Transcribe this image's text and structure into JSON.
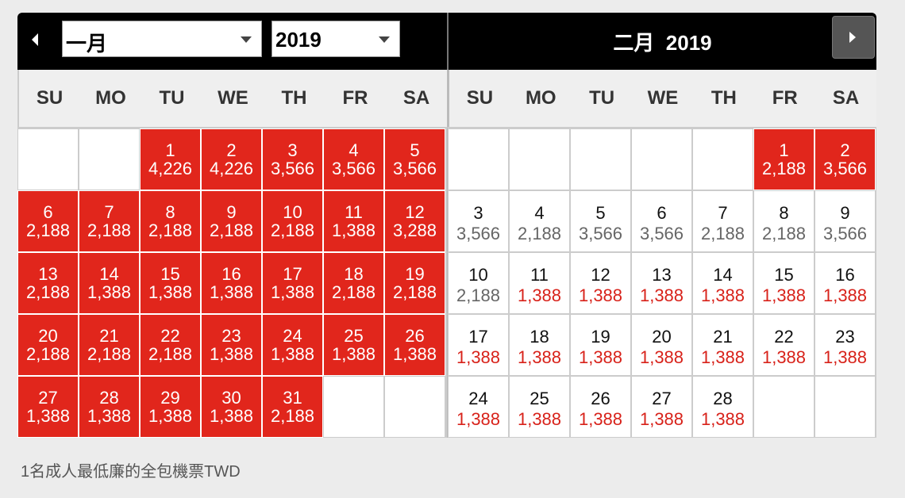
{
  "jan": {
    "month_value": "一月",
    "year_value": "2019",
    "weekdays": [
      "SU",
      "MO",
      "TU",
      "WE",
      "TH",
      "FR",
      "SA"
    ],
    "cells": [
      {
        "d": "",
        "p": "",
        "t": "empty"
      },
      {
        "d": "",
        "p": "",
        "t": "empty"
      },
      {
        "d": "1",
        "p": "4,226",
        "t": "red"
      },
      {
        "d": "2",
        "p": "4,226",
        "t": "red"
      },
      {
        "d": "3",
        "p": "3,566",
        "t": "red"
      },
      {
        "d": "4",
        "p": "3,566",
        "t": "red"
      },
      {
        "d": "5",
        "p": "3,566",
        "t": "red"
      },
      {
        "d": "6",
        "p": "2,188",
        "t": "red"
      },
      {
        "d": "7",
        "p": "2,188",
        "t": "red"
      },
      {
        "d": "8",
        "p": "2,188",
        "t": "red"
      },
      {
        "d": "9",
        "p": "2,188",
        "t": "red"
      },
      {
        "d": "10",
        "p": "2,188",
        "t": "red"
      },
      {
        "d": "11",
        "p": "1,388",
        "t": "red"
      },
      {
        "d": "12",
        "p": "3,288",
        "t": "red"
      },
      {
        "d": "13",
        "p": "2,188",
        "t": "red"
      },
      {
        "d": "14",
        "p": "1,388",
        "t": "red"
      },
      {
        "d": "15",
        "p": "1,388",
        "t": "red"
      },
      {
        "d": "16",
        "p": "1,388",
        "t": "red"
      },
      {
        "d": "17",
        "p": "1,388",
        "t": "red"
      },
      {
        "d": "18",
        "p": "2,188",
        "t": "red"
      },
      {
        "d": "19",
        "p": "2,188",
        "t": "red"
      },
      {
        "d": "20",
        "p": "2,188",
        "t": "red"
      },
      {
        "d": "21",
        "p": "2,188",
        "t": "red"
      },
      {
        "d": "22",
        "p": "2,188",
        "t": "red"
      },
      {
        "d": "23",
        "p": "1,388",
        "t": "red"
      },
      {
        "d": "24",
        "p": "1,388",
        "t": "red"
      },
      {
        "d": "25",
        "p": "1,388",
        "t": "red"
      },
      {
        "d": "26",
        "p": "1,388",
        "t": "red"
      },
      {
        "d": "27",
        "p": "1,388",
        "t": "red"
      },
      {
        "d": "28",
        "p": "1,388",
        "t": "red"
      },
      {
        "d": "29",
        "p": "1,388",
        "t": "red"
      },
      {
        "d": "30",
        "p": "1,388",
        "t": "red"
      },
      {
        "d": "31",
        "p": "2,188",
        "t": "red"
      },
      {
        "d": "",
        "p": "",
        "t": "empty"
      },
      {
        "d": "",
        "p": "",
        "t": "empty"
      }
    ]
  },
  "feb": {
    "title": "二月  2019",
    "weekdays": [
      "SU",
      "MO",
      "TU",
      "WE",
      "TH",
      "FR",
      "SA"
    ],
    "cells": [
      {
        "d": "",
        "p": "",
        "t": "empty"
      },
      {
        "d": "",
        "p": "",
        "t": "empty"
      },
      {
        "d": "",
        "p": "",
        "t": "empty"
      },
      {
        "d": "",
        "p": "",
        "t": "empty"
      },
      {
        "d": "",
        "p": "",
        "t": "empty"
      },
      {
        "d": "1",
        "p": "2,188",
        "t": "red"
      },
      {
        "d": "2",
        "p": "3,566",
        "t": "red"
      },
      {
        "d": "3",
        "p": "3,566",
        "t": "gray"
      },
      {
        "d": "4",
        "p": "2,188",
        "t": "gray"
      },
      {
        "d": "5",
        "p": "3,566",
        "t": "gray"
      },
      {
        "d": "6",
        "p": "3,566",
        "t": "gray"
      },
      {
        "d": "7",
        "p": "2,188",
        "t": "gray"
      },
      {
        "d": "8",
        "p": "2,188",
        "t": "gray"
      },
      {
        "d": "9",
        "p": "3,566",
        "t": "gray"
      },
      {
        "d": "10",
        "p": "2,188",
        "t": "gray"
      },
      {
        "d": "11",
        "p": "1,388",
        "t": "low"
      },
      {
        "d": "12",
        "p": "1,388",
        "t": "low"
      },
      {
        "d": "13",
        "p": "1,388",
        "t": "low"
      },
      {
        "d": "14",
        "p": "1,388",
        "t": "low"
      },
      {
        "d": "15",
        "p": "1,388",
        "t": "low"
      },
      {
        "d": "16",
        "p": "1,388",
        "t": "low"
      },
      {
        "d": "17",
        "p": "1,388",
        "t": "low"
      },
      {
        "d": "18",
        "p": "1,388",
        "t": "low"
      },
      {
        "d": "19",
        "p": "1,388",
        "t": "low"
      },
      {
        "d": "20",
        "p": "1,388",
        "t": "low"
      },
      {
        "d": "21",
        "p": "1,388",
        "t": "low"
      },
      {
        "d": "22",
        "p": "1,388",
        "t": "low"
      },
      {
        "d": "23",
        "p": "1,388",
        "t": "low"
      },
      {
        "d": "24",
        "p": "1,388",
        "t": "low"
      },
      {
        "d": "25",
        "p": "1,388",
        "t": "low"
      },
      {
        "d": "26",
        "p": "1,388",
        "t": "low"
      },
      {
        "d": "27",
        "p": "1,388",
        "t": "low"
      },
      {
        "d": "28",
        "p": "1,388",
        "t": "low"
      },
      {
        "d": "",
        "p": "",
        "t": "empty"
      },
      {
        "d": "",
        "p": "",
        "t": "empty"
      }
    ]
  },
  "footer_note": "1名成人最低廉的全包機票TWD",
  "icons": {
    "prev": "chevron-left-icon",
    "next": "chevron-right-icon",
    "dropdown": "caret-down-icon"
  },
  "colors": {
    "selected_red": "#e1261c",
    "low_fare_text": "#d8221a",
    "regular_fare_text": "#666666",
    "header_black": "#000000"
  }
}
